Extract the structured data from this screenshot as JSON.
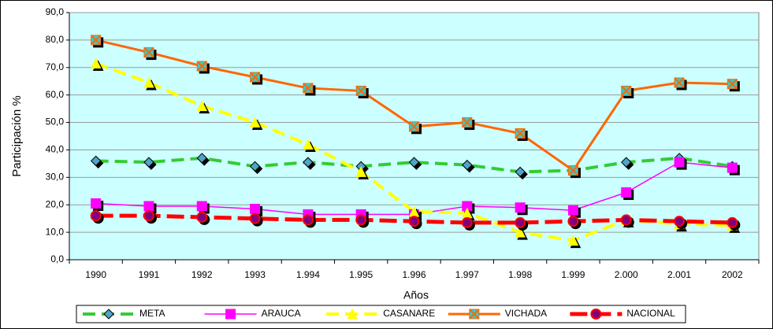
{
  "chart_data": {
    "type": "line",
    "x_label": "Años",
    "y_label": "Participación %",
    "categories": [
      "1990",
      "1991",
      "1992",
      "1993",
      "1.994",
      "1.995",
      "1.996",
      "1.997",
      "1.998",
      "1.999",
      "2.000",
      "2.001",
      "2002"
    ],
    "series": [
      {
        "name": "META",
        "color": "#33cc33",
        "marker_color": "#4da6c9",
        "marker": "diamond",
        "dash": "dashed",
        "values": [
          36.0,
          35.5,
          37.0,
          34.0,
          35.5,
          34.0,
          35.5,
          34.5,
          32.0,
          32.5,
          35.5,
          37.0,
          34.0
        ]
      },
      {
        "name": "ARAUCA",
        "color": "#ff00ff",
        "marker_color": "#ff00ff",
        "marker": "square",
        "dash": "solid-thin",
        "values": [
          20.5,
          19.5,
          19.5,
          18.5,
          16.5,
          16.5,
          16.5,
          19.5,
          19.0,
          18.0,
          24.5,
          35.5,
          33.5
        ]
      },
      {
        "name": "CASANARE",
        "color": "#ffff00",
        "marker_color": "#ffff00",
        "marker": "triangle",
        "dash": "dashed",
        "values": [
          71.5,
          64.5,
          56.0,
          50.0,
          42.0,
          32.0,
          17.5,
          17.0,
          10.0,
          7.0,
          14.5,
          13.0,
          12.5
        ]
      },
      {
        "name": "VICHADA",
        "color": "#ff6600",
        "marker_color": "#33cccc",
        "marker": "xsquare",
        "dash": "solid",
        "values": [
          80.0,
          75.5,
          70.5,
          66.5,
          62.5,
          61.5,
          48.5,
          50.0,
          46.0,
          32.5,
          61.5,
          64.5,
          64.0
        ]
      },
      {
        "name": "NACIONAL",
        "color": "#ff0000",
        "marker_color": "#800080",
        "marker": "circle",
        "dash": "longdash",
        "values": [
          16.0,
          16.0,
          15.5,
          15.0,
          14.5,
          14.5,
          14.0,
          13.5,
          13.5,
          14.0,
          14.5,
          14.0,
          13.5
        ]
      }
    ],
    "ylim": [
      0,
      90
    ],
    "yticks": [
      {
        "value": 0,
        "label": "0,0"
      },
      {
        "value": 10,
        "label": "10,0"
      },
      {
        "value": 20,
        "label": "20,0"
      },
      {
        "value": 30,
        "label": "30,0"
      },
      {
        "value": 40,
        "label": "40,0"
      },
      {
        "value": 50,
        "label": "50,0"
      },
      {
        "value": 60,
        "label": "60,0"
      },
      {
        "value": 70,
        "label": "70,0"
      },
      {
        "value": 80,
        "label": "80,0"
      },
      {
        "value": 90,
        "label": "90,0"
      }
    ],
    "grid": true,
    "legend": "bottom",
    "plot_background": "#ccffff"
  }
}
